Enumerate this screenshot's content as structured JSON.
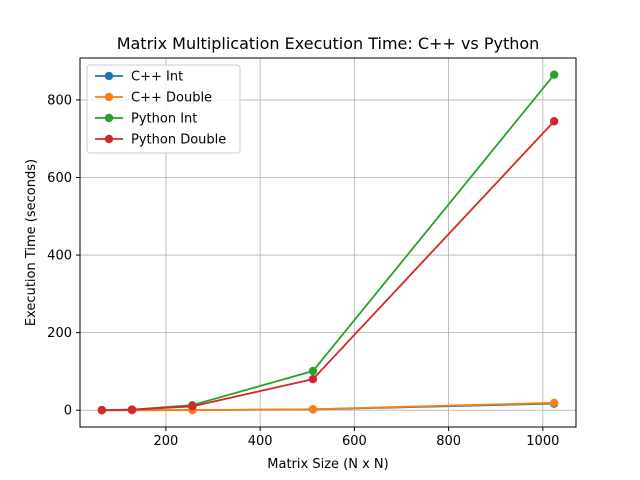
{
  "chart_data": {
    "type": "line",
    "title": "Matrix Multiplication Execution Time: C++ vs Python",
    "xlabel": "Matrix Size (N x N)",
    "ylabel": "Execution Time (seconds)",
    "xlim": [
      17.6,
      1070.4
    ],
    "ylim": [
      -43.3,
      908.1
    ],
    "xticks": [
      200,
      400,
      600,
      800,
      1000
    ],
    "yticks": [
      0,
      200,
      400,
      600,
      800
    ],
    "grid": true,
    "legend_position": "top-left",
    "x": [
      64,
      128,
      256,
      512,
      1024
    ],
    "series": [
      {
        "name": "C++ Int",
        "color": "#1f77b4",
        "values": [
          0.01,
          0.08,
          0.3,
          2.0,
          17.0
        ]
      },
      {
        "name": "C++ Double",
        "color": "#ff7f0e",
        "values": [
          0.01,
          0.09,
          0.4,
          2.5,
          19.0
        ]
      },
      {
        "name": "Python Int",
        "color": "#2ca02c",
        "values": [
          0.2,
          1.5,
          13.0,
          101.0,
          865.0
        ]
      },
      {
        "name": "Python Double",
        "color": "#d62728",
        "values": [
          0.2,
          1.3,
          10.0,
          80.0,
          745.0
        ]
      }
    ]
  }
}
